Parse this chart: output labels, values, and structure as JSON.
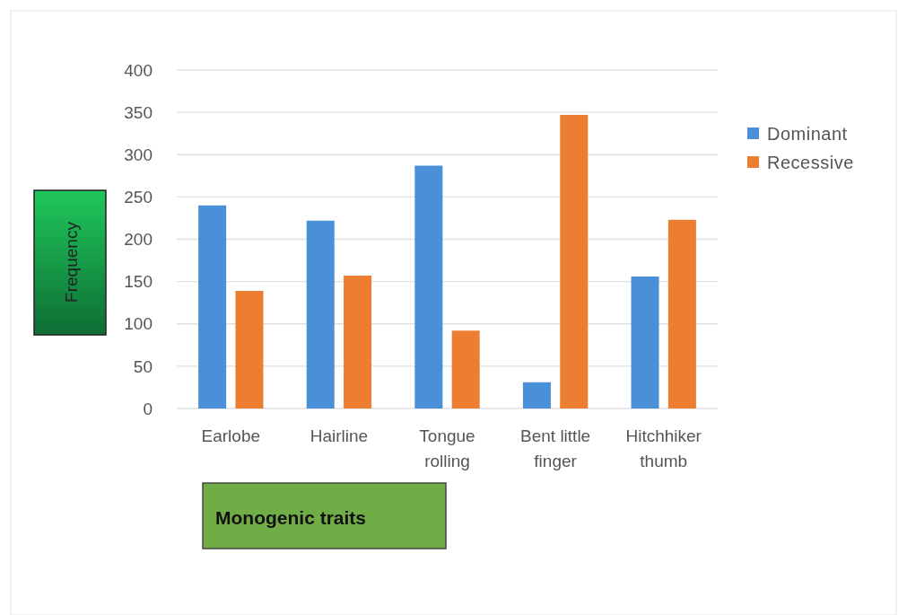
{
  "chart_data": {
    "type": "bar",
    "xlabel": "Monogenic traits",
    "ylabel": "Frequency",
    "categories": [
      "Earlobe",
      "Hairline",
      "Tongue rolling",
      "Bent little finger",
      "Hitchhiker thumb"
    ],
    "series": [
      {
        "name": "Dominant",
        "color": "#4a90d9",
        "values": [
          240,
          222,
          287,
          31,
          156
        ]
      },
      {
        "name": "Recessive",
        "color": "#ed7d31",
        "values": [
          139,
          157,
          92,
          347,
          223
        ]
      }
    ],
    "ylim": [
      0,
      400
    ],
    "yticks": [
      0,
      50,
      100,
      150,
      200,
      250,
      300,
      350,
      400
    ],
    "grid": "y",
    "legend": "right"
  }
}
